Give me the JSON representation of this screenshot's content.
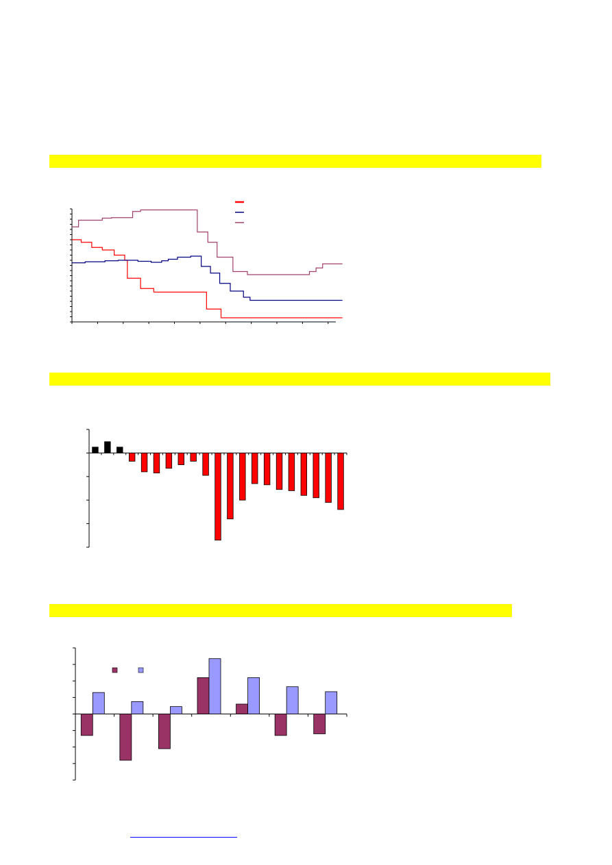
{
  "colors": {
    "highlight": "#ffff00",
    "red": "#ff0000",
    "navy": "#000080",
    "mauve": "#a0406a",
    "black": "#000000",
    "purple": "#993366",
    "periwinkle": "#9999ff",
    "link": "#0000ff"
  },
  "chart_data": [
    {
      "type": "line",
      "step": true,
      "title": "",
      "xlabel": "",
      "ylabel": "",
      "legend_position": "top-center",
      "x_count": 21,
      "ylim": [
        0,
        22
      ],
      "series": [
        {
          "color": "red",
          "points": [
            [
              0,
              16
            ],
            [
              0.7,
              15.5
            ],
            [
              1.5,
              14.5
            ],
            [
              2.3,
              14
            ],
            [
              3.2,
              13
            ],
            [
              4.0,
              12
            ],
            [
              4.2,
              8.5
            ],
            [
              5.2,
              6.5
            ],
            [
              6.2,
              5.8
            ],
            [
              8.0,
              5.8
            ],
            [
              10.2,
              2.5
            ],
            [
              11.3,
              0.8
            ],
            [
              20.5,
              0.8
            ]
          ]
        },
        {
          "color": "navy",
          "points": [
            [
              0,
              11.5
            ],
            [
              1.0,
              11.7
            ],
            [
              2.5,
              11.9
            ],
            [
              3.5,
              12.0
            ],
            [
              5.0,
              11.8
            ],
            [
              6.0,
              11.6
            ],
            [
              6.8,
              11.9
            ],
            [
              7.3,
              12.2
            ],
            [
              8.0,
              12.6
            ],
            [
              9.0,
              12.8
            ],
            [
              9.8,
              10.8
            ],
            [
              10.5,
              9.5
            ],
            [
              11.2,
              7.5
            ],
            [
              12.0,
              6.0
            ],
            [
              13.0,
              4.8
            ],
            [
              13.5,
              4.2
            ],
            [
              20.5,
              4.2
            ]
          ]
        },
        {
          "color": "mauve",
          "points": [
            [
              0,
              18.5
            ],
            [
              0.5,
              19.8
            ],
            [
              1.5,
              19.8
            ],
            [
              2.3,
              20.2
            ],
            [
              3.0,
              20.3
            ],
            [
              4.0,
              20.3
            ],
            [
              4.6,
              21.5
            ],
            [
              5.2,
              21.8
            ],
            [
              9.0,
              21.8
            ],
            [
              9.5,
              17.5
            ],
            [
              10.3,
              15.5
            ],
            [
              11.0,
              12.6
            ],
            [
              12.2,
              9.8
            ],
            [
              13.3,
              9.2
            ],
            [
              17.5,
              9.2
            ],
            [
              18.0,
              9.8
            ],
            [
              18.5,
              10.5
            ],
            [
              19.0,
              11.3
            ],
            [
              20.5,
              11.3
            ]
          ]
        }
      ]
    },
    {
      "type": "bar",
      "title": "",
      "xlabel": "",
      "ylabel": "",
      "ylim": [
        -4,
        1
      ],
      "values": [
        0.25,
        0.48,
        0.25,
        -0.35,
        -0.8,
        -0.85,
        -0.65,
        -0.5,
        -0.35,
        -0.95,
        -3.7,
        -2.8,
        -2.0,
        -1.3,
        -1.35,
        -1.55,
        -1.6,
        -1.8,
        -1.9,
        -2.1,
        -2.4
      ],
      "colors": [
        "black",
        "black",
        "black",
        "red",
        "red",
        "red",
        "red",
        "red",
        "red",
        "red",
        "red",
        "red",
        "red",
        "red",
        "red",
        "red",
        "red",
        "red",
        "red",
        "red",
        "red"
      ]
    },
    {
      "type": "bar",
      "title": "",
      "xlabel": "",
      "ylabel": "",
      "legend_position": "top-left",
      "ylim": [
        -4,
        4
      ],
      "group_count": 7,
      "series": [
        {
          "color": "purple",
          "values": [
            -1.3,
            -2.8,
            -2.1,
            2.2,
            0.6,
            -1.3,
            -1.2
          ]
        },
        {
          "color": "periwinkle",
          "values": [
            1.3,
            0.75,
            0.45,
            3.35,
            2.2,
            1.65,
            1.35
          ]
        }
      ]
    }
  ]
}
